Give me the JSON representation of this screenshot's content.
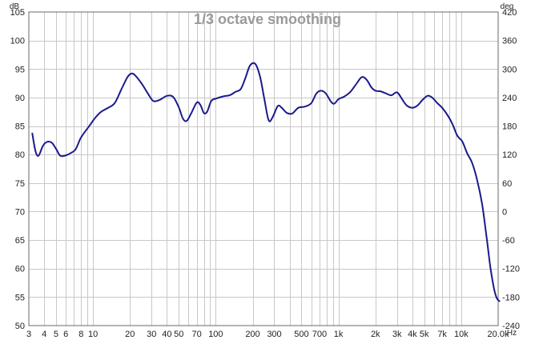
{
  "chart_data": {
    "type": "line",
    "title": "1/3 octave smoothing",
    "xscale": "log",
    "xlim": [
      3,
      20000
    ],
    "ylim": [
      50,
      105
    ],
    "y2lim": [
      -240,
      420
    ],
    "y_unit": "dB",
    "y2_unit": "deg",
    "x_unit": "Hz",
    "grid": true,
    "x_ticks": [
      {
        "value": 3,
        "label": "3"
      },
      {
        "value": 4,
        "label": "4"
      },
      {
        "value": 5,
        "label": "5"
      },
      {
        "value": 6,
        "label": "6"
      },
      {
        "value": 8,
        "label": "8"
      },
      {
        "value": 10,
        "label": "10"
      },
      {
        "value": 20,
        "label": "20"
      },
      {
        "value": 30,
        "label": "30"
      },
      {
        "value": 40,
        "label": "40"
      },
      {
        "value": 50,
        "label": "50"
      },
      {
        "value": 70,
        "label": "70"
      },
      {
        "value": 100,
        "label": "100"
      },
      {
        "value": 200,
        "label": "200"
      },
      {
        "value": 300,
        "label": "300"
      },
      {
        "value": 500,
        "label": "500"
      },
      {
        "value": 700,
        "label": "700"
      },
      {
        "value": 1000,
        "label": "1k"
      },
      {
        "value": 2000,
        "label": "2k"
      },
      {
        "value": 3000,
        "label": "3k"
      },
      {
        "value": 4000,
        "label": "4k"
      },
      {
        "value": 5000,
        "label": "5k"
      },
      {
        "value": 7000,
        "label": "7k"
      },
      {
        "value": 10000,
        "label": "10k"
      },
      {
        "value": 20000,
        "label": "20.0k"
      }
    ],
    "y_ticks": [
      50,
      55,
      60,
      65,
      70,
      75,
      80,
      85,
      90,
      95,
      100,
      105
    ],
    "y2_ticks": [
      "-240",
      "-180",
      "-120",
      "-60",
      "0",
      "60",
      "120",
      "180",
      "240",
      "300",
      "360",
      "420"
    ],
    "series": [
      {
        "color": "#1a1a8c",
        "points": [
          [
            3.2,
            83.7
          ],
          [
            3.4,
            80.6
          ],
          [
            3.6,
            79.8
          ],
          [
            3.9,
            81.5
          ],
          [
            4.2,
            82.2
          ],
          [
            4.6,
            82.1
          ],
          [
            5.0,
            81.0
          ],
          [
            5.4,
            79.8
          ],
          [
            5.9,
            79.8
          ],
          [
            6.5,
            80.2
          ],
          [
            7.2,
            80.9
          ],
          [
            7.9,
            82.8
          ],
          [
            8.6,
            84.0
          ],
          [
            9.4,
            85.1
          ],
          [
            10.3,
            86.3
          ],
          [
            11.5,
            87.4
          ],
          [
            13.0,
            88.1
          ],
          [
            15.0,
            89.0
          ],
          [
            17.0,
            91.4
          ],
          [
            19.0,
            93.5
          ],
          [
            20.5,
            94.2
          ],
          [
            22.0,
            93.9
          ],
          [
            25.0,
            92.4
          ],
          [
            28.0,
            90.7
          ],
          [
            31.0,
            89.4
          ],
          [
            35.0,
            89.6
          ],
          [
            40.0,
            90.3
          ],
          [
            45.0,
            90.1
          ],
          [
            50.0,
            88.3
          ],
          [
            54.0,
            86.3
          ],
          [
            58.0,
            85.9
          ],
          [
            63.0,
            87.2
          ],
          [
            70.0,
            89.1
          ],
          [
            75.0,
            88.7
          ],
          [
            80.0,
            87.3
          ],
          [
            85.0,
            87.5
          ],
          [
            92.0,
            89.4
          ],
          [
            100.0,
            89.8
          ],
          [
            115.0,
            90.2
          ],
          [
            130.0,
            90.4
          ],
          [
            145.0,
            91.0
          ],
          [
            160.0,
            91.5
          ],
          [
            175.0,
            93.5
          ],
          [
            190.0,
            95.6
          ],
          [
            210.0,
            95.9
          ],
          [
            230.0,
            93.6
          ],
          [
            250.0,
            89.5
          ],
          [
            270.0,
            86.0
          ],
          [
            290.0,
            86.5
          ],
          [
            320.0,
            88.5
          ],
          [
            345.0,
            88.2
          ],
          [
            380.0,
            87.3
          ],
          [
            420.0,
            87.2
          ],
          [
            470.0,
            88.2
          ],
          [
            530.0,
            88.4
          ],
          [
            600.0,
            89.0
          ],
          [
            660.0,
            90.7
          ],
          [
            720.0,
            91.2
          ],
          [
            790.0,
            90.7
          ],
          [
            860.0,
            89.4
          ],
          [
            920.0,
            88.9
          ],
          [
            1000.0,
            89.7
          ],
          [
            1120.0,
            90.2
          ],
          [
            1250.0,
            91.0
          ],
          [
            1400.0,
            92.4
          ],
          [
            1550.0,
            93.6
          ],
          [
            1700.0,
            93.1
          ],
          [
            1850.0,
            91.8
          ],
          [
            2000.0,
            91.2
          ],
          [
            2200.0,
            91.1
          ],
          [
            2450.0,
            90.7
          ],
          [
            2700.0,
            90.4
          ],
          [
            3000.0,
            90.9
          ],
          [
            3300.0,
            89.7
          ],
          [
            3600.0,
            88.6
          ],
          [
            4000.0,
            88.2
          ],
          [
            4400.0,
            88.6
          ],
          [
            4800.0,
            89.5
          ],
          [
            5300.0,
            90.3
          ],
          [
            5800.0,
            90.0
          ],
          [
            6400.0,
            89.0
          ],
          [
            7000.0,
            88.2
          ],
          [
            7800.0,
            86.8
          ],
          [
            8500.0,
            85.3
          ],
          [
            9300.0,
            83.3
          ],
          [
            10200.0,
            82.3
          ],
          [
            11200.0,
            80.2
          ],
          [
            12300.0,
            78.5
          ],
          [
            13500.0,
            75.5
          ],
          [
            14800.0,
            71.3
          ],
          [
            16000.0,
            66.0
          ],
          [
            17300.0,
            60.2
          ],
          [
            18500.0,
            56.5
          ],
          [
            19500.0,
            54.8
          ],
          [
            20500.0,
            54.3
          ]
        ]
      }
    ]
  }
}
